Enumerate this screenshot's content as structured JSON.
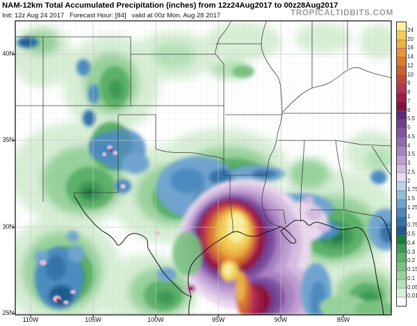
{
  "header": {
    "title": "NAM-12km Total Accumulated Precipitation (inches) from 12z24Aug2017 to 00z28Aug2017",
    "init_line": "Init: 12z Aug 24 2017   Forecast Hour: [84]   valid at 00z Mon, Aug 28 2017",
    "watermark": "TROPICALTIDBITS.COM"
  },
  "map": {
    "axis": {
      "lat": [
        "40N",
        "35N",
        "30N",
        "25N"
      ],
      "lon": [
        "110W",
        "105W",
        "100W",
        "95W",
        "90W",
        "85W"
      ]
    },
    "region": "South-central United States and Gulf of Mexico",
    "max_feature": "Accumulated precipitation bullseye exceeding 24 inches on the upper Texas coast"
  },
  "colorbar": {
    "unit": "inches",
    "tick_labels_top_to_bottom": [
      "24",
      "20",
      "16",
      "14",
      "12",
      "10",
      "9",
      "8",
      "7",
      "6",
      "5.5",
      "5",
      "4.5",
      "4",
      "3.5",
      "3",
      "2.5",
      "2",
      "1.75",
      "1.5",
      "1.25",
      "1",
      "0.75",
      "0.5",
      "0.4",
      "0.3",
      "0.2",
      "0.15",
      "0.1",
      "0.05",
      "0.01"
    ],
    "colors_top_to_bottom": [
      "#faf0a0",
      "#f3cf55",
      "#edb042",
      "#e8953a",
      "#df7a30",
      "#cc5f2a",
      "#bb4b33",
      "#b83253",
      "#a21d45",
      "#8b103c",
      "#5e2b80",
      "#6f3f92",
      "#8253a3",
      "#9468b1",
      "#a982c1",
      "#bf9dd1",
      "#d4bbdf",
      "#ead9ee",
      "#b8d3ea",
      "#93bcdd",
      "#6fa4d0",
      "#4c8bc0",
      "#3273ab",
      "#1d5a8e",
      "#1b7c41",
      "#3d9a54",
      "#5cb068",
      "#79c180",
      "#97d19b",
      "#b5e1b6",
      "#d8efd6",
      "#ffffff"
    ]
  }
}
